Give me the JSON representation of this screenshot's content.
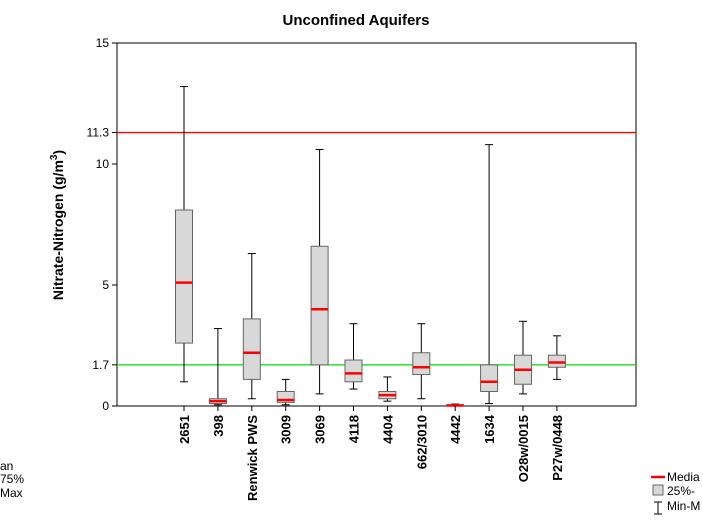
{
  "chart_data": {
    "type": "box",
    "title": "Unconfined Aquifers",
    "ylabel": "Nitrate-Nitrogen (g/m",
    "ylabel_sup": "3",
    "ylabel_end": ")",
    "ylim": [
      0,
      15
    ],
    "yticks": [
      0,
      1.7,
      5,
      10,
      11.3,
      15
    ],
    "yticks_labels": [
      "0",
      "1.7",
      "5",
      "10",
      "11.3",
      "15"
    ],
    "reference_lines": [
      {
        "value": 11.3,
        "color": "#ff0000"
      },
      {
        "value": 1.7,
        "color": "#00dd00"
      }
    ],
    "categories": [
      "2651",
      "398",
      "Renwick PWS",
      "3009",
      "3069",
      "4118",
      "4404",
      "662/3010",
      "4442",
      "1634",
      "O28w/0015",
      "P27w/0448"
    ],
    "boxes": [
      {
        "min": 1.0,
        "q1": 2.6,
        "median": 5.1,
        "q3": 8.1,
        "max": 13.2
      },
      {
        "min": 0.05,
        "q1": 0.1,
        "median": 0.2,
        "q3": 0.3,
        "max": 3.2
      },
      {
        "min": 0.3,
        "q1": 1.1,
        "median": 2.2,
        "q3": 3.6,
        "max": 6.3
      },
      {
        "min": 0.05,
        "q1": 0.15,
        "median": 0.25,
        "q3": 0.6,
        "max": 1.1
      },
      {
        "min": 0.5,
        "q1": 1.7,
        "median": 4.0,
        "q3": 6.6,
        "max": 10.6
      },
      {
        "min": 0.7,
        "q1": 1.0,
        "median": 1.35,
        "q3": 1.9,
        "max": 3.4
      },
      {
        "min": 0.2,
        "q1": 0.3,
        "median": 0.45,
        "q3": 0.6,
        "max": 1.2
      },
      {
        "min": 0.3,
        "q1": 1.3,
        "median": 1.6,
        "q3": 2.2,
        "max": 3.4
      },
      {
        "min": 0.0,
        "q1": 0.0,
        "median": 0.02,
        "q3": 0.05,
        "max": 0.08
      },
      {
        "min": 0.1,
        "q1": 0.6,
        "median": 1.0,
        "q3": 1.7,
        "max": 10.8
      },
      {
        "min": 0.5,
        "q1": 0.9,
        "median": 1.5,
        "q3": 2.1,
        "max": 3.5
      },
      {
        "min": 1.1,
        "q1": 1.6,
        "median": 1.8,
        "q3": 2.1,
        "max": 2.9
      }
    ],
    "colors": {
      "median": "#ff0000",
      "box_fill": "#d8d8d8",
      "box_stroke": "#666666",
      "whisker": "#000000"
    },
    "legend_left": [
      "an",
      "75%",
      "Max"
    ],
    "legend_right": [
      "Media",
      "25%-",
      "Min-M"
    ]
  }
}
